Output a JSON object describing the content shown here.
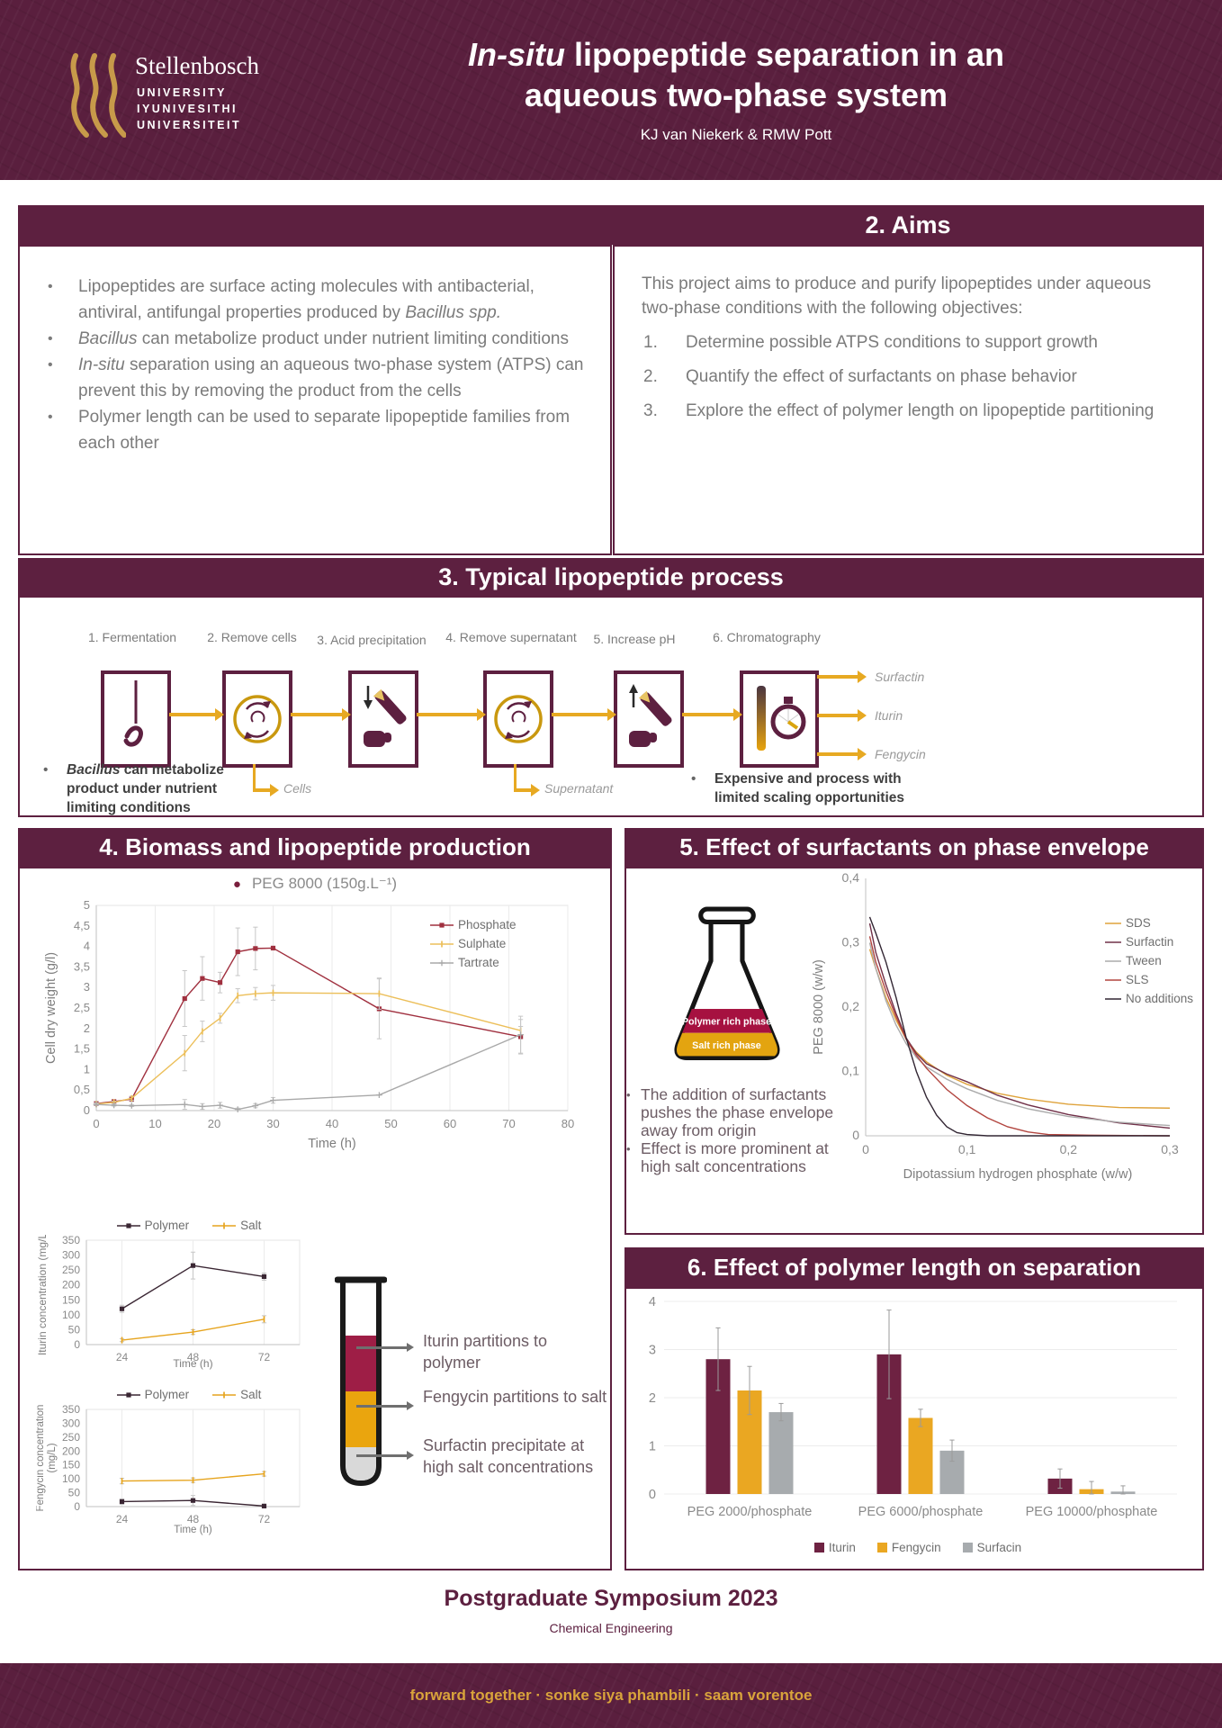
{
  "colors": {
    "maroon": "#5d2040",
    "gold": "#e7a922",
    "crimson": "#9e1e46",
    "gray": "#a7abae"
  },
  "header": {
    "logo": {
      "brand": "Stellenbosch",
      "sub1": "UNIVERSITY",
      "sub2": "IYUNIVESITHI",
      "sub3": "UNIVERSITEIT"
    },
    "title_italic": "In-situ",
    "title_rest": " lipopeptide separation in an",
    "title_line2": "aqueous two-phase system",
    "authors": "KJ van Niekerk & RMW Pott"
  },
  "sections": {
    "intro": {
      "bullets": [
        "Lipopeptides are surface acting molecules with antibacterial, antiviral, antifungal properties produced by *Bacillus spp.*",
        "*Bacillus* can metabolize product under nutrient limiting conditions",
        "*In-situ* separation using an aqueous two-phase system (ATPS) can prevent this by removing the product from the cells",
        "Polymer length can be used to separate lipopeptide families from each other"
      ]
    },
    "aims": {
      "title": "2. Aims",
      "intro": "This project aims to produce and purify lipopeptides under aqueous two-phase conditions with the following objectives:",
      "objectives": [
        "Determine possible ATPS conditions to support growth",
        "Quantify the effect of surfactants on phase behavior",
        "Explore the effect of polymer length on lipopeptide partitioning"
      ]
    },
    "process": {
      "title": "3. Typical lipopeptide process",
      "steps": [
        "1. Fermentation",
        "2. Remove cells",
        "3. Acid precipitation",
        "4. Remove supernatant",
        "5. Increase pH",
        "6. Chromatography"
      ],
      "cells_label": "Cells",
      "supernatant_label": "Supernatant",
      "products": [
        "Surfactin",
        "Iturin",
        "Fengycin"
      ],
      "note_left": "*Bacillus* can metabolize product under nutrient limiting conditions",
      "note_right": "Expensive and process with limited scaling opportunities"
    },
    "biomass": {
      "title": "4. Biomass and lipopeptide production",
      "chart_title": "PEG 8000 (150g.L⁻¹)"
    },
    "surfactants": {
      "title": "5. Effect of surfactants on phase envelope",
      "flask_labels": [
        "Polymer rich phase",
        "Salt rich phase"
      ],
      "bullets": [
        "The addition of surfactants pushes the phase envelope away from origin",
        "Effect is more prominent at high salt concentrations"
      ]
    },
    "polymer": {
      "title": "6. Effect of polymer length on separation"
    }
  },
  "tube": {
    "annotations": [
      "Iturin partitions to polymer",
      "Fengycin partitions to salt",
      "Surfactin precipitate at high salt concentrations"
    ]
  },
  "footer": {
    "title": "Postgraduate Symposium 2023",
    "dept": "Chemical Engineering",
    "slogan": "forward together · sonke siya phambili · saam vorentoe"
  },
  "chart_data": [
    {
      "id": "cdw",
      "type": "line",
      "title": "PEG 8000 (150g.L⁻¹)",
      "xlabel": "Time (h)",
      "ylabel": "Cell dry weight  (g/l)",
      "xlim": [
        0,
        80
      ],
      "ylim": [
        0,
        5
      ],
      "xticks": {
        "values": [
          0,
          10,
          20,
          30,
          40,
          50,
          60,
          70,
          80
        ],
        "labels": [
          "0",
          "10",
          "20",
          "30",
          "40",
          "50",
          "60",
          "70",
          "80"
        ]
      },
      "yticks": {
        "values": [
          0,
          0.5,
          1,
          1.5,
          2,
          2.5,
          3,
          3.5,
          4,
          4.5,
          5
        ],
        "labels": [
          "0",
          "0,5",
          "1",
          "1,5",
          "2",
          "2,5",
          "3",
          "3,5",
          "4",
          "4,5",
          "5"
        ]
      },
      "grid": "v",
      "border": true,
      "margins": {
        "l": 62,
        "r": 14,
        "t": 10,
        "b": 46
      },
      "fs": 13,
      "lfs": 14.5,
      "ylx": 16,
      "x": [
        0,
        3,
        6,
        15,
        18,
        21,
        24,
        27,
        30,
        48,
        72
      ],
      "series": [
        {
          "name": "Phosphate",
          "color": "#a0303f",
          "marker": "square",
          "values": [
            0.17,
            0.22,
            0.28,
            2.73,
            3.22,
            3.12,
            3.87,
            3.95,
            3.96,
            2.48,
            1.8
          ],
          "err": [
            0.05,
            0.04,
            0.06,
            0.68,
            0.53,
            0.25,
            0.58,
            0.52,
            0,
            0.73,
            0.42
          ]
        },
        {
          "name": "Sulphate",
          "color": "#ecbf5a",
          "marker": "tick",
          "values": [
            0.16,
            0.2,
            0.3,
            1.4,
            1.93,
            2.25,
            2.8,
            2.85,
            2.87,
            2.85,
            1.95
          ],
          "err": [
            0.03,
            0.03,
            0.05,
            0.43,
            0.25,
            0.12,
            0.17,
            0.15,
            0.18,
            0.38,
            0.1
          ]
        },
        {
          "name": "Tartrate",
          "color": "#a9a9a9",
          "marker": "plus",
          "values": [
            0.15,
            0.13,
            0.12,
            0.15,
            0.1,
            0.13,
            0.03,
            0.12,
            0.25,
            0.38,
            1.85
          ],
          "err": [
            0.02,
            0.02,
            0.02,
            0.12,
            0.07,
            0.07,
            0.03,
            0.05,
            0.07,
            0,
            0.45
          ]
        }
      ],
      "legend_position": "right"
    },
    {
      "id": "iturin",
      "type": "line",
      "xlabel": "Time (h)",
      "ylabel": "Iturin concentration (mg/L)",
      "xlim": [
        12,
        84
      ],
      "ylim": [
        0,
        350
      ],
      "xticks": {
        "values": [
          24,
          48,
          72
        ],
        "labels": [
          "24",
          "48",
          "72"
        ]
      },
      "yticks": {
        "values": [
          0,
          50,
          100,
          150,
          200,
          250,
          300,
          350
        ],
        "labels": [
          "0",
          "50",
          "100",
          "150",
          "200",
          "250",
          "300",
          "350"
        ]
      },
      "grid": "v",
      "border": true,
      "margins": {
        "l": 56,
        "r": 12,
        "t": 6,
        "b": 30
      },
      "fs": 12,
      "lfs": 12,
      "ylx": 11,
      "x": [
        24,
        48,
        72
      ],
      "series": [
        {
          "name": "Polymer",
          "color": "#3a2633",
          "marker": "square",
          "values": [
            120,
            265,
            228
          ],
          "err": [
            12,
            45,
            12
          ]
        },
        {
          "name": "Salt",
          "color": "#e6a41e",
          "marker": "tick",
          "values": [
            15,
            42,
            85
          ],
          "err": [
            5,
            8,
            12
          ]
        }
      ],
      "legend_position": "top"
    },
    {
      "id": "fengycin",
      "type": "line",
      "xlabel": "Time (h)",
      "ylabel": [
        "Fengycin concentration",
        "(mg/L)"
      ],
      "xlim": [
        12,
        84
      ],
      "ylim": [
        0,
        350
      ],
      "xticks": {
        "values": [
          24,
          48,
          72
        ],
        "labels": [
          "24",
          "48",
          "72"
        ]
      },
      "yticks": {
        "values": [
          0,
          50,
          100,
          150,
          200,
          250,
          300,
          350
        ],
        "labels": [
          "0",
          "50",
          "100",
          "150",
          "200",
          "250",
          "300",
          "350"
        ]
      },
      "grid": "v",
      "border": true,
      "margins": {
        "l": 56,
        "r": 12,
        "t": 6,
        "b": 34
      },
      "fs": 12,
      "lfs": 11.5,
      "ylx": 8,
      "x": [
        24,
        48,
        72
      ],
      "series": [
        {
          "name": "Polymer",
          "color": "#3a2633",
          "marker": "square",
          "values": [
            18,
            22,
            2
          ],
          "err": [
            10,
            18,
            3
          ]
        },
        {
          "name": "Salt",
          "color": "#e6a41e",
          "marker": "tick",
          "values": [
            92,
            95,
            118
          ],
          "err": [
            10,
            8,
            8
          ]
        }
      ],
      "legend_position": "top"
    },
    {
      "id": "phase",
      "type": "curve",
      "xlabel": "Dipotassium hydrogen phosphate (w/w)",
      "ylabel": "PEG 8000  (w/w)",
      "xlim": [
        0,
        0.3
      ],
      "ylim": [
        0,
        0.4
      ],
      "xticks": {
        "values": [
          0,
          0.1,
          0.2,
          0.3
        ],
        "labels": [
          "0",
          "0,1",
          "0,2",
          "0,3"
        ]
      },
      "yticks": {
        "values": [
          0,
          0.1,
          0.2,
          0.3,
          0.4
        ],
        "labels": [
          "0",
          "0,1",
          "0,2",
          "0,3",
          "0,4"
        ]
      },
      "grid": null,
      "border": false,
      "margins": {
        "l": 64,
        "r": 38,
        "t": 14,
        "b": 52
      },
      "fs": 14,
      "lfs": 14.5,
      "ylx": 16,
      "series": [
        {
          "name": "SDS",
          "color": "#dfa33c",
          "points": [
            [
              0.004,
              0.29
            ],
            [
              0.01,
              0.26
            ],
            [
              0.02,
              0.215
            ],
            [
              0.03,
              0.18
            ],
            [
              0.04,
              0.15
            ],
            [
              0.05,
              0.13
            ],
            [
              0.06,
              0.115
            ],
            [
              0.08,
              0.094
            ],
            [
              0.1,
              0.08
            ],
            [
              0.13,
              0.066
            ],
            [
              0.16,
              0.057
            ],
            [
              0.2,
              0.049
            ],
            [
              0.25,
              0.044
            ],
            [
              0.3,
              0.043
            ]
          ]
        },
        {
          "name": "Surfactin",
          "color": "#703048",
          "points": [
            [
              0.004,
              0.33
            ],
            [
              0.01,
              0.285
            ],
            [
              0.02,
              0.235
            ],
            [
              0.03,
              0.19
            ],
            [
              0.04,
              0.152
            ],
            [
              0.05,
              0.128
            ],
            [
              0.06,
              0.112
            ],
            [
              0.08,
              0.096
            ],
            [
              0.1,
              0.084
            ],
            [
              0.13,
              0.063
            ],
            [
              0.16,
              0.048
            ],
            [
              0.2,
              0.033
            ],
            [
              0.25,
              0.02
            ],
            [
              0.3,
              0.012
            ]
          ]
        },
        {
          "name": "Tween",
          "color": "#ababab",
          "points": [
            [
              0.004,
              0.3
            ],
            [
              0.01,
              0.26
            ],
            [
              0.02,
              0.21
            ],
            [
              0.03,
              0.172
            ],
            [
              0.04,
              0.143
            ],
            [
              0.05,
              0.122
            ],
            [
              0.06,
              0.107
            ],
            [
              0.08,
              0.088
            ],
            [
              0.1,
              0.073
            ],
            [
              0.13,
              0.055
            ],
            [
              0.16,
              0.042
            ],
            [
              0.2,
              0.03
            ],
            [
              0.25,
              0.021
            ],
            [
              0.3,
              0.016
            ]
          ]
        },
        {
          "name": "SLS",
          "color": "#b2453f",
          "points": [
            [
              0.004,
              0.31
            ],
            [
              0.01,
              0.27
            ],
            [
              0.02,
              0.225
            ],
            [
              0.03,
              0.185
            ],
            [
              0.04,
              0.15
            ],
            [
              0.05,
              0.125
            ],
            [
              0.06,
              0.105
            ],
            [
              0.08,
              0.072
            ],
            [
              0.1,
              0.047
            ],
            [
              0.12,
              0.028
            ],
            [
              0.14,
              0.014
            ],
            [
              0.16,
              0.006
            ],
            [
              0.18,
              0.002
            ],
            [
              0.22,
              0.001
            ],
            [
              0.3,
              0
            ]
          ]
        },
        {
          "name": "No additions",
          "color": "#322633",
          "points": [
            [
              0.004,
              0.34
            ],
            [
              0.01,
              0.315
            ],
            [
              0.02,
              0.27
            ],
            [
              0.03,
              0.215
            ],
            [
              0.04,
              0.152
            ],
            [
              0.05,
              0.1
            ],
            [
              0.06,
              0.06
            ],
            [
              0.07,
              0.032
            ],
            [
              0.08,
              0.014
            ],
            [
              0.09,
              0.005
            ],
            [
              0.1,
              0.002
            ],
            [
              0.12,
              0
            ],
            [
              0.3,
              0
            ]
          ]
        }
      ],
      "legend_position": "right"
    },
    {
      "id": "partition",
      "type": "bar",
      "categories": [
        "PEG 2000/phosphate",
        "PEG 6000/phosphate",
        "PEG 10000/phosphate"
      ],
      "ylim": [
        0,
        4
      ],
      "yticks": {
        "values": [
          0,
          1,
          2,
          3,
          4
        ],
        "labels": [
          "0",
          "1",
          "2",
          "3",
          "4"
        ]
      },
      "margins": {
        "l": 38,
        "r": 20,
        "t": 8,
        "b": 40
      },
      "fs": 14.5,
      "series": [
        {
          "name": "Iturin",
          "color": "#6e2242",
          "values": [
            2.8,
            2.9,
            0.32
          ],
          "err": [
            0.65,
            0.92,
            0.2
          ]
        },
        {
          "name": "Fengycin",
          "color": "#eaa722",
          "values": [
            2.15,
            1.58,
            0.1
          ],
          "err": [
            0.5,
            0.18,
            0.16
          ]
        },
        {
          "name": "Surfacin",
          "color": "#a7abae",
          "values": [
            1.7,
            0.9,
            0.05
          ],
          "err": [
            0.18,
            0.22,
            0.12
          ]
        }
      ],
      "legend_position": "bottom"
    }
  ]
}
